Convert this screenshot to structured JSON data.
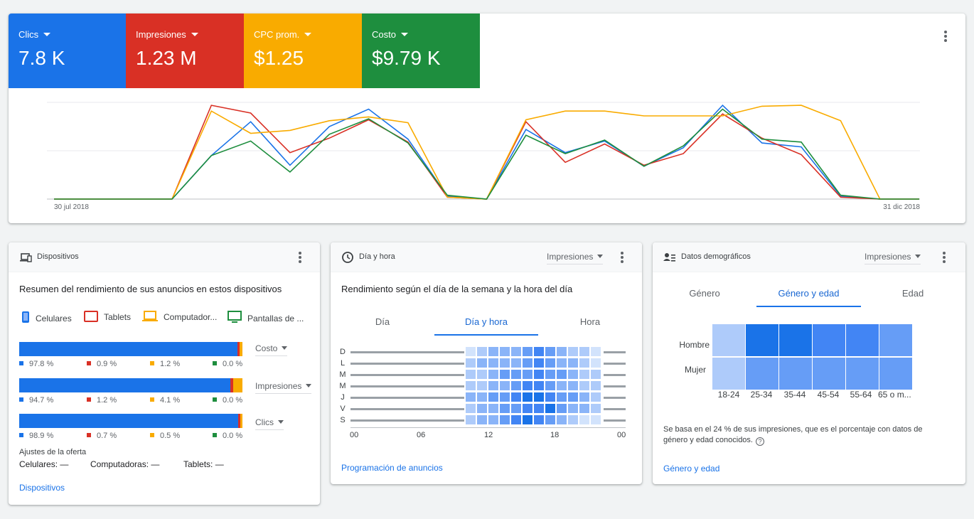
{
  "metrics": [
    {
      "label": "Clics",
      "value": "7.8 K",
      "color": "#1a73e8"
    },
    {
      "label": "Impresiones",
      "value": "1.23 M",
      "color": "#d93025"
    },
    {
      "label": "CPC prom.",
      "value": "$1.25",
      "color": "#f9ab00"
    },
    {
      "label": "Costo",
      "value": "$9.79 K",
      "color": "#1e8e3e"
    }
  ],
  "chart": {
    "start_label": "30 jul 2018",
    "end_label": "31 dic 2018"
  },
  "chart_data": {
    "type": "line",
    "x_start": "30 jul 2018",
    "x_end": "31 dic 2018",
    "grid": true,
    "ylim": [
      0,
      100
    ],
    "series": [
      {
        "name": "Clics",
        "color": "#1a73e8",
        "values": [
          0,
          0,
          0,
          0,
          45,
          80,
          35,
          75,
          93,
          62,
          3,
          0,
          72,
          48,
          60,
          34,
          53,
          97,
          58,
          54,
          3,
          0,
          0
        ]
      },
      {
        "name": "Impresiones",
        "color": "#d93025",
        "values": [
          0,
          0,
          0,
          0,
          97,
          89,
          48,
          63,
          82,
          59,
          2,
          0,
          80,
          38,
          57,
          35,
          47,
          88,
          63,
          46,
          2,
          0,
          0
        ]
      },
      {
        "name": "CPC prom.",
        "color": "#f9ab00",
        "values": [
          0,
          0,
          0,
          0,
          91,
          68,
          71,
          81,
          85,
          79,
          2,
          0,
          82,
          91,
          91,
          86,
          86,
          86,
          96,
          97,
          81,
          0,
          0
        ]
      },
      {
        "name": "Costo",
        "color": "#1e8e3e",
        "values": [
          0,
          0,
          0,
          0,
          45,
          60,
          28,
          67,
          83,
          58,
          4,
          0,
          66,
          47,
          61,
          34,
          55,
          93,
          62,
          59,
          4,
          0,
          0
        ]
      }
    ]
  },
  "devices": {
    "title": "Dispositivos",
    "subtitle": "Resumen del rendimiento de sus anuncios en estos dispositivos",
    "legend": [
      {
        "label": "Celulares",
        "icon": "phone-icon",
        "color": "#1a73e8"
      },
      {
        "label": "Tablets",
        "icon": "tablet-icon",
        "color": "#d93025"
      },
      {
        "label": "Computador...",
        "icon": "laptop-icon",
        "color": "#f9ab00"
      },
      {
        "label": "Pantallas de ...",
        "icon": "tv-icon",
        "color": "#1e8e3e"
      }
    ],
    "rows": [
      {
        "metric": "Costo",
        "shares": [
          97.8,
          0.9,
          1.2,
          0.0
        ],
        "labels": [
          "97.8 %",
          "0.9 %",
          "1.2 %",
          "0.0 %"
        ]
      },
      {
        "metric": "Impresiones",
        "shares": [
          94.7,
          1.2,
          4.1,
          0.0
        ],
        "labels": [
          "94.7 %",
          "1.2 %",
          "4.1 %",
          "0.0 %"
        ]
      },
      {
        "metric": "Clics",
        "shares": [
          98.9,
          0.7,
          0.5,
          0.0
        ],
        "labels": [
          "98.9 %",
          "0.7 %",
          "0.5 %",
          "0.0 %"
        ]
      }
    ],
    "adjust_label": "Ajustes de la oferta",
    "adjust": {
      "phones": "Celulares: —",
      "computers": "Computadoras: —",
      "tablets": "Tablets: —"
    },
    "link": "Dispositivos"
  },
  "dayhour": {
    "title": "Día y hora",
    "dropdown": "Impresiones",
    "subtitle": "Rendimiento según el día de la semana y la hora del día",
    "tabs": [
      "Día",
      "Día y hora",
      "Hora"
    ],
    "days": [
      "D",
      "L",
      "M",
      "M",
      "J",
      "V",
      "S"
    ],
    "hours": [
      "00",
      "06",
      "12",
      "18",
      "00"
    ],
    "link": "Programación de anuncios",
    "heat_colors": [
      "#e8f0fe",
      "#d2e3fc",
      "#aecbfa",
      "#8ab4f8",
      "#669df6",
      "#4285f4",
      "#1a73e8"
    ],
    "heat_levels": [
      [
        1,
        2,
        3,
        3,
        3,
        4,
        5,
        4,
        3,
        2,
        2,
        1
      ],
      [
        2,
        3,
        3,
        3,
        3,
        4,
        5,
        4,
        3,
        3,
        2,
        1
      ],
      [
        2,
        2,
        3,
        4,
        4,
        4,
        5,
        4,
        4,
        3,
        2,
        2
      ],
      [
        2,
        2,
        3,
        3,
        4,
        5,
        5,
        4,
        3,
        3,
        2,
        2
      ],
      [
        3,
        3,
        4,
        4,
        5,
        6,
        6,
        5,
        4,
        4,
        3,
        2
      ],
      [
        2,
        3,
        3,
        4,
        4,
        5,
        5,
        6,
        4,
        3,
        3,
        2
      ],
      [
        2,
        3,
        3,
        4,
        5,
        6,
        5,
        4,
        3,
        2,
        1,
        1
      ]
    ]
  },
  "demographics": {
    "title": "Datos demográficos",
    "dropdown": "Impresiones",
    "tabs": [
      "Género",
      "Género y edad",
      "Edad"
    ],
    "rows": [
      "Hombre",
      "Mujer"
    ],
    "ages": [
      "18-24",
      "25-34",
      "35-44",
      "45-54",
      "55-64",
      "65 o m..."
    ],
    "heat_colors": [
      "#aecbfa",
      "#669df6",
      "#4285f4",
      "#1a73e8"
    ],
    "heat_levels": [
      [
        0,
        3,
        3,
        2,
        2,
        1
      ],
      [
        0,
        1,
        1,
        1,
        1,
        1
      ]
    ],
    "note": "Se basa en el 24 % de sus impresiones, que es el porcentaje con datos de género y edad conocidos.",
    "link": "Género y edad"
  }
}
